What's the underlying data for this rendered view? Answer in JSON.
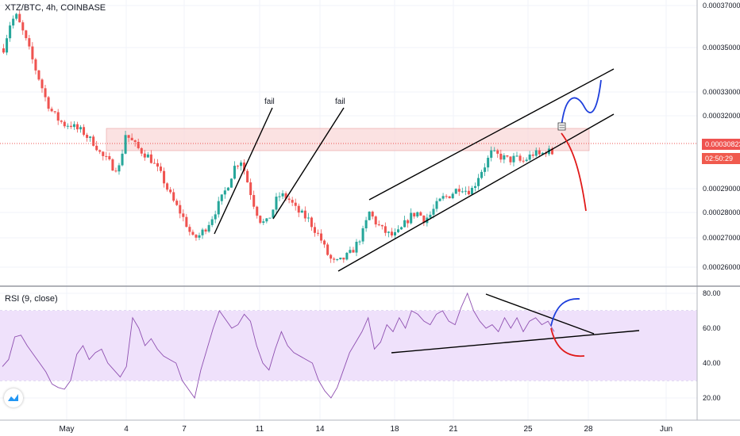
{
  "header": {
    "title": "XTZ/BTC, 4h, COINBASE"
  },
  "rsi_header": {
    "title": "RSI (9, close)"
  },
  "price_tags": {
    "last_price": "0.00030823",
    "countdown": "02:50:29"
  },
  "annotations": {
    "fail_1": "fail",
    "fail_2": "fail"
  },
  "colors": {
    "up": "#26a69a",
    "down": "#ef5350",
    "channel": "#000000",
    "blue_path": "#1e3fdc",
    "red_path": "#e01919",
    "rsi_line": "#8e4fb0",
    "rsi_band": "#efe1fb",
    "resistance_zone": "#f9d8d8"
  },
  "chart_data": [
    {
      "type": "candlestick",
      "symbol": "XTZ/BTC",
      "timeframe": "4h",
      "exchange": "COINBASE",
      "yticks": [
        "0.00037000",
        "0.00035000",
        "0.00033000",
        "0.00032000",
        "0.00029000",
        "0.00028000",
        "0.00027000",
        "0.00026000"
      ],
      "xticks": [
        "May",
        "4",
        "7",
        "11",
        "14",
        "18",
        "21",
        "25",
        "28",
        "Jun"
      ],
      "last_price": 0.00030823,
      "resistance_zone": [
        0.0003055,
        0.0003145
      ],
      "trend_lines": [
        {
          "label": "fail",
          "from": [
            "May 8",
            0.00027
          ],
          "to": [
            "May 11",
            0.000331
          ]
        },
        {
          "label": "fail",
          "from": [
            "May 12",
            0.000278
          ],
          "to": [
            "May 15",
            0.000331
          ]
        },
        {
          "label": "channel top",
          "from": [
            "May 17",
            0.000284
          ],
          "to": [
            "May 29",
            0.00034
          ]
        },
        {
          "label": "channel bottom",
          "from": [
            "May 15",
            0.000259
          ],
          "to": [
            "May 29",
            0.00032
          ]
        }
      ],
      "close_path": [
        0.000352,
        0.000362,
        0.000366,
        0.00036,
        0.000353,
        0.000345,
        0.000338,
        0.00033,
        0.000325,
        0.000322,
        0.00032,
        0.00032,
        0.000318,
        0.000317,
        0.000314,
        0.000312,
        0.000307,
        0.000305,
        0.000302,
        0.000302,
        0.000316,
        0.000313,
        0.00031,
        0.000308,
        0.000306,
        0.000302,
        0.000298,
        0.000292,
        0.000287,
        0.000283,
        0.000278,
        0.000272,
        0.000273,
        0.000276,
        0.00028,
        0.000285,
        0.00029,
        0.000296,
        0.000303,
        0.000305,
        0.000296,
        0.000287,
        0.00028,
        0.000278,
        0.000283,
        0.00029,
        0.00029,
        0.000288,
        0.000284,
        0.000282,
        0.00028,
        0.000276,
        0.000272,
        0.000266,
        0.000262,
        0.000262,
        0.000264,
        0.000266,
        0.00027,
        0.000275,
        0.000283,
        0.000279,
        0.000276,
        0.000274,
        0.000273,
        0.000275,
        0.000279,
        0.000282,
        0.000283,
        0.00028,
        0.000282,
        0.000286,
        0.000289,
        0.00029,
        0.000292,
        0.000294,
        0.000292,
        0.000293,
        0.000299,
        0.000303,
        0.000308,
        0.000307,
        0.000306,
        0.000305,
        0.000306,
        0.000304,
        0.000306,
        0.000308,
        0.000307,
        0.000309,
        0.000308
      ]
    },
    {
      "type": "line",
      "title": "RSI (9, close)",
      "yticks": [
        "80.00",
        "60.00",
        "40.00",
        "20.00"
      ],
      "bands": [
        30,
        70
      ],
      "values": [
        38,
        42,
        55,
        56,
        50,
        45,
        40,
        35,
        28,
        26,
        25,
        30,
        45,
        50,
        42,
        46,
        48,
        40,
        36,
        32,
        38,
        66,
        60,
        50,
        54,
        48,
        44,
        42,
        40,
        30,
        25,
        20,
        36,
        48,
        60,
        70,
        65,
        60,
        62,
        68,
        64,
        50,
        40,
        36,
        48,
        58,
        50,
        46,
        44,
        42,
        40,
        30,
        24,
        20,
        26,
        36,
        46,
        52,
        58,
        66,
        48,
        52,
        62,
        58,
        66,
        60,
        70,
        68,
        64,
        62,
        68,
        70,
        64,
        62,
        72,
        80,
        70,
        64,
        60,
        62,
        58,
        66,
        60,
        66,
        58,
        64,
        66,
        62,
        64,
        58
      ],
      "trend_lines": [
        {
          "from": [
            493,
            445
          ],
          "to": [
            805,
            417
          ]
        },
        {
          "from": [
            612,
            371
          ],
          "to": [
            748,
            421
          ]
        }
      ]
    }
  ]
}
